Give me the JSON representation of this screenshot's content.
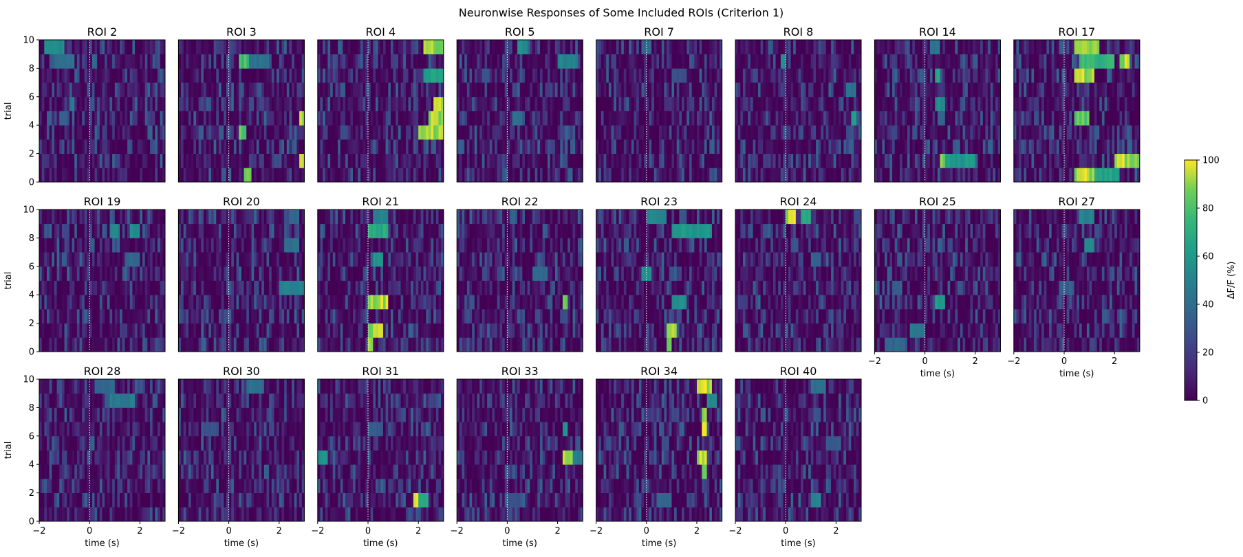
{
  "chart_data": {
    "type": "heatmap",
    "title": "Neuronwise Responses of Some Included ROIs (Criterion 1)",
    "xlabel": "time (s)",
    "ylabel": "trial",
    "xlim": [
      -2,
      3
    ],
    "ylim": [
      0,
      10
    ],
    "xticks": [
      -2,
      0,
      2
    ],
    "yticks": [
      0,
      2,
      4,
      6,
      8,
      10
    ],
    "stimulus_onset": 0,
    "n_trials": 10,
    "n_bins": 50,
    "colormap": "viridis",
    "colorbar": {
      "label": "ΔF/F (%)",
      "min": 0,
      "max": 100,
      "ticks": [
        0,
        20,
        40,
        60,
        80,
        100
      ]
    },
    "panels": [
      {
        "title": "ROI 2",
        "hotspots": [
          [
            9,
            2,
            8,
            60
          ],
          [
            8,
            6,
            8,
            45
          ],
          [
            5,
            12,
            2,
            50
          ],
          [
            4,
            8,
            3,
            40
          ]
        ]
      },
      {
        "title": "ROI 3",
        "hotspots": [
          [
            8,
            24,
            4,
            85
          ],
          [
            3,
            24,
            3,
            90
          ],
          [
            0,
            26,
            3,
            95
          ],
          [
            8,
            28,
            8,
            45
          ],
          [
            4,
            48,
            2,
            100
          ],
          [
            1,
            48,
            2,
            100
          ]
        ]
      },
      {
        "title": "ROI 4",
        "hotspots": [
          [
            9,
            42,
            8,
            100
          ],
          [
            7,
            42,
            8,
            70
          ],
          [
            3,
            40,
            10,
            100
          ],
          [
            4,
            44,
            6,
            100
          ],
          [
            5,
            46,
            4,
            100
          ]
        ]
      },
      {
        "title": "ROI 5",
        "hotspots": [
          [
            9,
            24,
            4,
            60
          ],
          [
            8,
            40,
            8,
            55
          ],
          [
            4,
            22,
            4,
            45
          ]
        ]
      },
      {
        "title": "ROI 7",
        "hotspots": [
          [
            9,
            18,
            4,
            40
          ],
          [
            7,
            30,
            6,
            30
          ]
        ]
      },
      {
        "title": "ROI 8",
        "hotspots": [
          [
            8,
            18,
            2,
            60
          ],
          [
            4,
            46,
            2,
            70
          ],
          [
            6,
            44,
            4,
            45
          ]
        ]
      },
      {
        "title": "ROI 14",
        "hotspots": [
          [
            1,
            26,
            2,
            100
          ],
          [
            1,
            28,
            12,
            65
          ],
          [
            5,
            24,
            4,
            60
          ],
          [
            7,
            24,
            2,
            70
          ],
          [
            9,
            22,
            4,
            45
          ]
        ]
      },
      {
        "title": "ROI 17",
        "hotspots": [
          [
            9,
            24,
            10,
            100
          ],
          [
            8,
            26,
            14,
            80
          ],
          [
            8,
            42,
            4,
            100
          ],
          [
            7,
            24,
            8,
            100
          ],
          [
            4,
            24,
            6,
            90
          ],
          [
            1,
            40,
            10,
            100
          ],
          [
            0,
            24,
            8,
            100
          ],
          [
            0,
            32,
            10,
            70
          ]
        ]
      },
      {
        "title": "ROI 19",
        "hotspots": [
          [
            8,
            28,
            4,
            55
          ],
          [
            8,
            36,
            4,
            60
          ],
          [
            6,
            34,
            6,
            40
          ]
        ]
      },
      {
        "title": "ROI 20",
        "hotspots": [
          [
            4,
            40,
            10,
            55
          ],
          [
            7,
            42,
            6,
            45
          ],
          [
            9,
            44,
            4,
            40
          ]
        ]
      },
      {
        "title": "ROI 21",
        "hotspots": [
          [
            3,
            20,
            8,
            100
          ],
          [
            1,
            20,
            6,
            100
          ],
          [
            0,
            20,
            2,
            100
          ],
          [
            8,
            20,
            8,
            75
          ],
          [
            9,
            22,
            6,
            55
          ],
          [
            6,
            22,
            4,
            60
          ]
        ]
      },
      {
        "title": "ROI 22",
        "hotspots": [
          [
            3,
            42,
            2,
            100
          ],
          [
            5,
            30,
            6,
            40
          ]
        ]
      },
      {
        "title": "ROI 23",
        "hotspots": [
          [
            8,
            30,
            16,
            65
          ],
          [
            9,
            20,
            8,
            55
          ],
          [
            1,
            28,
            4,
            100
          ],
          [
            0,
            28,
            2,
            90
          ],
          [
            3,
            30,
            6,
            60
          ],
          [
            5,
            18,
            4,
            60
          ]
        ]
      },
      {
        "title": "ROI 24",
        "hotspots": [
          [
            9,
            20,
            4,
            100
          ],
          [
            9,
            26,
            4,
            75
          ],
          [
            6,
            30,
            4,
            40
          ]
        ]
      },
      {
        "title": "ROI 25",
        "hotspots": [
          [
            3,
            24,
            4,
            65
          ],
          [
            1,
            14,
            6,
            50
          ],
          [
            0,
            4,
            8,
            40
          ]
        ]
      },
      {
        "title": "ROI 27",
        "hotspots": [
          [
            9,
            26,
            6,
            55
          ],
          [
            7,
            28,
            4,
            60
          ],
          [
            4,
            18,
            6,
            35
          ]
        ]
      },
      {
        "title": "ROI 28",
        "hotspots": [
          [
            8,
            28,
            10,
            50
          ],
          [
            9,
            22,
            8,
            40
          ]
        ]
      },
      {
        "title": "ROI 30",
        "hotspots": [
          [
            9,
            28,
            6,
            45
          ],
          [
            6,
            10,
            6,
            30
          ]
        ]
      },
      {
        "title": "ROI 31",
        "hotspots": [
          [
            1,
            38,
            2,
            100
          ],
          [
            1,
            40,
            4,
            70
          ],
          [
            4,
            0,
            4,
            60
          ],
          [
            6,
            20,
            6,
            35
          ]
        ]
      },
      {
        "title": "ROI 33",
        "hotspots": [
          [
            4,
            42,
            4,
            100
          ],
          [
            4,
            46,
            4,
            50
          ],
          [
            6,
            42,
            2,
            60
          ],
          [
            1,
            20,
            6,
            30
          ]
        ]
      },
      {
        "title": "ROI 34",
        "hotspots": [
          [
            9,
            40,
            6,
            100
          ],
          [
            7,
            42,
            2,
            100
          ],
          [
            6,
            42,
            2,
            100
          ],
          [
            4,
            40,
            4,
            100
          ],
          [
            3,
            42,
            2,
            90
          ],
          [
            8,
            44,
            4,
            60
          ],
          [
            1,
            24,
            6,
            40
          ]
        ]
      },
      {
        "title": "ROI 40",
        "hotspots": [
          [
            9,
            30,
            6,
            45
          ],
          [
            1,
            30,
            4,
            55
          ],
          [
            5,
            36,
            6,
            35
          ]
        ]
      }
    ]
  }
}
